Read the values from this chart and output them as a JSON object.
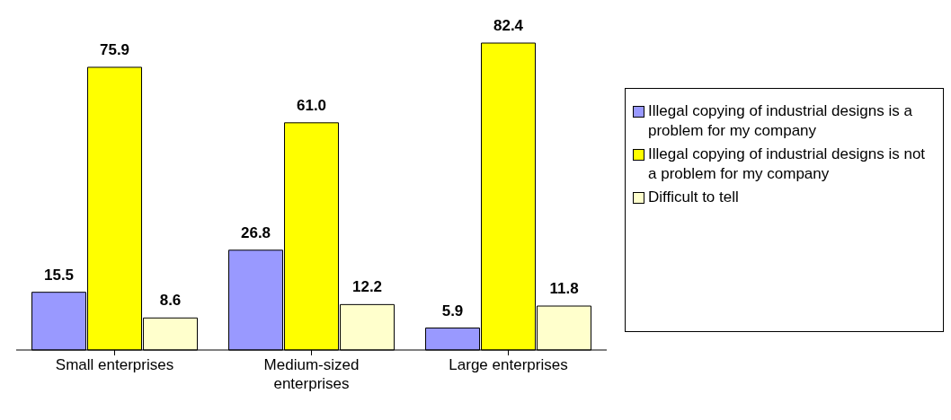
{
  "chart_data": {
    "type": "bar",
    "categories": [
      "Small enterprises",
      "Medium-sized enterprises",
      "Large enterprises"
    ],
    "series": [
      {
        "name": "Illegal copying of industrial designs is a problem for my company",
        "color": "#9999ff",
        "values": [
          15.5,
          26.8,
          5.9
        ],
        "value_labels": [
          "15.5",
          "26.8",
          "5.9"
        ]
      },
      {
        "name": "Illegal copying of industrial designs is not a problem for my company",
        "color": "#ffff00",
        "values": [
          75.9,
          61.0,
          82.4
        ],
        "value_labels": [
          "75.9",
          "61.0",
          "82.4"
        ]
      },
      {
        "name": "Difficult to tell",
        "color": "#ffffcc",
        "values": [
          8.6,
          12.2,
          11.8
        ],
        "value_labels": [
          "8.6",
          "12.2",
          "11.8"
        ]
      }
    ],
    "legend": "right",
    "grid": false
  }
}
